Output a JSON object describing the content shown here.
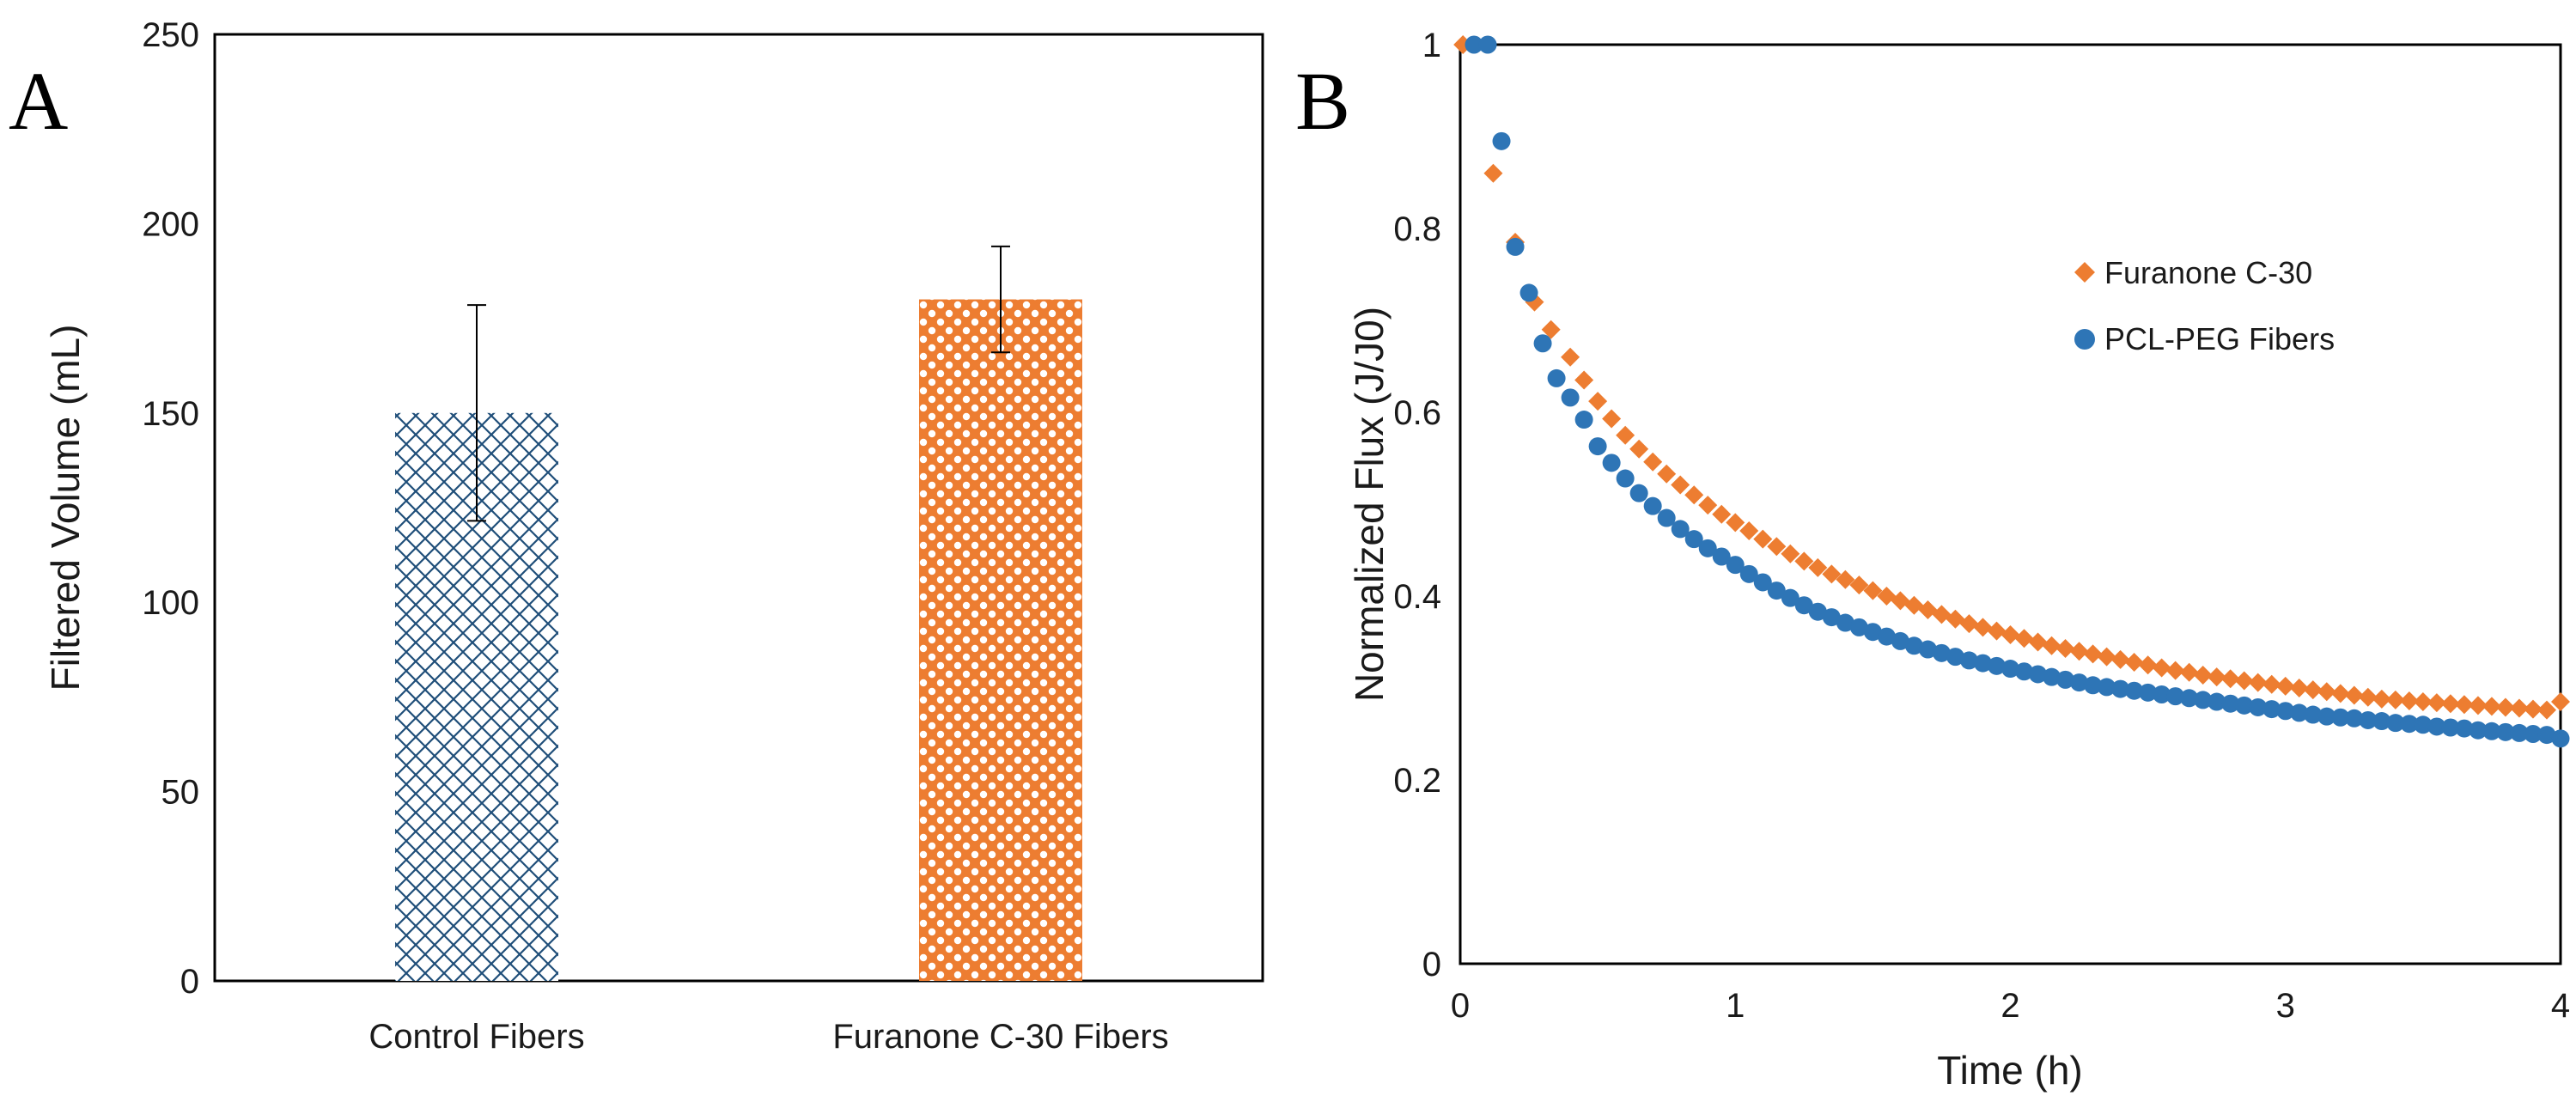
{
  "chart_data": [
    {
      "panel": "A",
      "type": "bar",
      "categories": [
        "Control Fibers",
        "Furanone C-30 Fibers"
      ],
      "values": [
        150,
        180
      ],
      "errors": [
        28.5,
        14
      ],
      "ylabel": "Filtered Volume (mL)",
      "xlabel": "",
      "ylim": [
        0,
        250
      ],
      "yticks": [
        "0",
        "50",
        "100",
        "150",
        "200",
        "250"
      ],
      "colors": [
        "#1f4e79",
        "#ed7d31"
      ],
      "patterns": [
        "crosshatch",
        "dots"
      ]
    },
    {
      "panel": "B",
      "type": "scatter",
      "xlabel": "Time (h)",
      "ylabel": "Normalized Flux (J/J0)",
      "xlim": [
        0,
        4
      ],
      "ylim": [
        0,
        1
      ],
      "xticks": [
        "0",
        "1",
        "2",
        "3",
        "4"
      ],
      "yticks": [
        "0",
        "0.2",
        "0.4",
        "0.6",
        "0.8",
        "1"
      ],
      "legend_position": "top-right",
      "series": [
        {
          "name": "Furanone C-30",
          "marker": "diamond",
          "color": "#ed7d31",
          "x": [
            0.01,
            0.12,
            0.2,
            0.27,
            0.33,
            0.4,
            0.45,
            0.5,
            0.55,
            0.6,
            0.65,
            0.7,
            0.75,
            0.8,
            0.85,
            0.9,
            0.95,
            1.0,
            1.05,
            1.1,
            1.15,
            1.2,
            1.25,
            1.3,
            1.35,
            1.4,
            1.45,
            1.5,
            1.55,
            1.6,
            1.65,
            1.7,
            1.75,
            1.8,
            1.85,
            1.9,
            1.95,
            2.0,
            2.05,
            2.1,
            2.15,
            2.2,
            2.25,
            2.3,
            2.35,
            2.4,
            2.45,
            2.5,
            2.55,
            2.6,
            2.65,
            2.7,
            2.75,
            2.8,
            2.85,
            2.9,
            2.95,
            3.0,
            3.05,
            3.1,
            3.15,
            3.2,
            3.25,
            3.3,
            3.35,
            3.4,
            3.45,
            3.5,
            3.55,
            3.6,
            3.65,
            3.7,
            3.75,
            3.8,
            3.85,
            3.9,
            3.95,
            4.0
          ],
          "y": [
            1.0,
            0.86,
            0.785,
            0.72,
            0.69,
            0.66,
            0.635,
            0.612,
            0.593,
            0.575,
            0.56,
            0.546,
            0.533,
            0.521,
            0.51,
            0.499,
            0.489,
            0.48,
            0.471,
            0.462,
            0.454,
            0.446,
            0.438,
            0.431,
            0.424,
            0.418,
            0.412,
            0.406,
            0.4,
            0.395,
            0.39,
            0.385,
            0.38,
            0.375,
            0.37,
            0.366,
            0.362,
            0.358,
            0.354,
            0.35,
            0.346,
            0.343,
            0.34,
            0.337,
            0.334,
            0.331,
            0.328,
            0.325,
            0.322,
            0.319,
            0.317,
            0.314,
            0.312,
            0.31,
            0.308,
            0.306,
            0.304,
            0.302,
            0.3,
            0.298,
            0.296,
            0.294,
            0.292,
            0.29,
            0.288,
            0.287,
            0.286,
            0.285,
            0.284,
            0.283,
            0.282,
            0.281,
            0.28,
            0.279,
            0.278,
            0.277,
            0.276,
            0.285
          ]
        },
        {
          "name": "PCL-PEG Fibers",
          "marker": "circle",
          "color": "#2e75b6",
          "x": [
            0.05,
            0.1,
            0.15,
            0.2,
            0.25,
            0.3,
            0.35,
            0.4,
            0.45,
            0.5,
            0.55,
            0.6,
            0.65,
            0.7,
            0.75,
            0.8,
            0.85,
            0.9,
            0.95,
            1.0,
            1.05,
            1.1,
            1.15,
            1.2,
            1.25,
            1.3,
            1.35,
            1.4,
            1.45,
            1.5,
            1.55,
            1.6,
            1.65,
            1.7,
            1.75,
            1.8,
            1.85,
            1.9,
            1.95,
            2.0,
            2.05,
            2.1,
            2.15,
            2.2,
            2.25,
            2.3,
            2.35,
            2.4,
            2.45,
            2.5,
            2.55,
            2.6,
            2.65,
            2.7,
            2.75,
            2.8,
            2.85,
            2.9,
            2.95,
            3.0,
            3.05,
            3.1,
            3.15,
            3.2,
            3.25,
            3.3,
            3.35,
            3.4,
            3.45,
            3.5,
            3.55,
            3.6,
            3.65,
            3.7,
            3.75,
            3.8,
            3.85,
            3.9,
            3.95,
            4.0
          ],
          "y": [
            1.0,
            1.0,
            0.895,
            0.78,
            0.73,
            0.675,
            0.637,
            0.616,
            0.592,
            0.563,
            0.545,
            0.528,
            0.512,
            0.498,
            0.485,
            0.473,
            0.462,
            0.452,
            0.443,
            0.434,
            0.424,
            0.415,
            0.406,
            0.398,
            0.39,
            0.383,
            0.377,
            0.371,
            0.366,
            0.361,
            0.356,
            0.351,
            0.346,
            0.342,
            0.338,
            0.334,
            0.33,
            0.327,
            0.324,
            0.321,
            0.318,
            0.315,
            0.312,
            0.309,
            0.306,
            0.303,
            0.301,
            0.299,
            0.297,
            0.295,
            0.293,
            0.291,
            0.289,
            0.287,
            0.285,
            0.283,
            0.281,
            0.279,
            0.277,
            0.275,
            0.273,
            0.271,
            0.269,
            0.268,
            0.267,
            0.265,
            0.264,
            0.262,
            0.261,
            0.26,
            0.258,
            0.257,
            0.256,
            0.254,
            0.253,
            0.252,
            0.251,
            0.25,
            0.249,
            0.245
          ]
        }
      ]
    }
  ]
}
